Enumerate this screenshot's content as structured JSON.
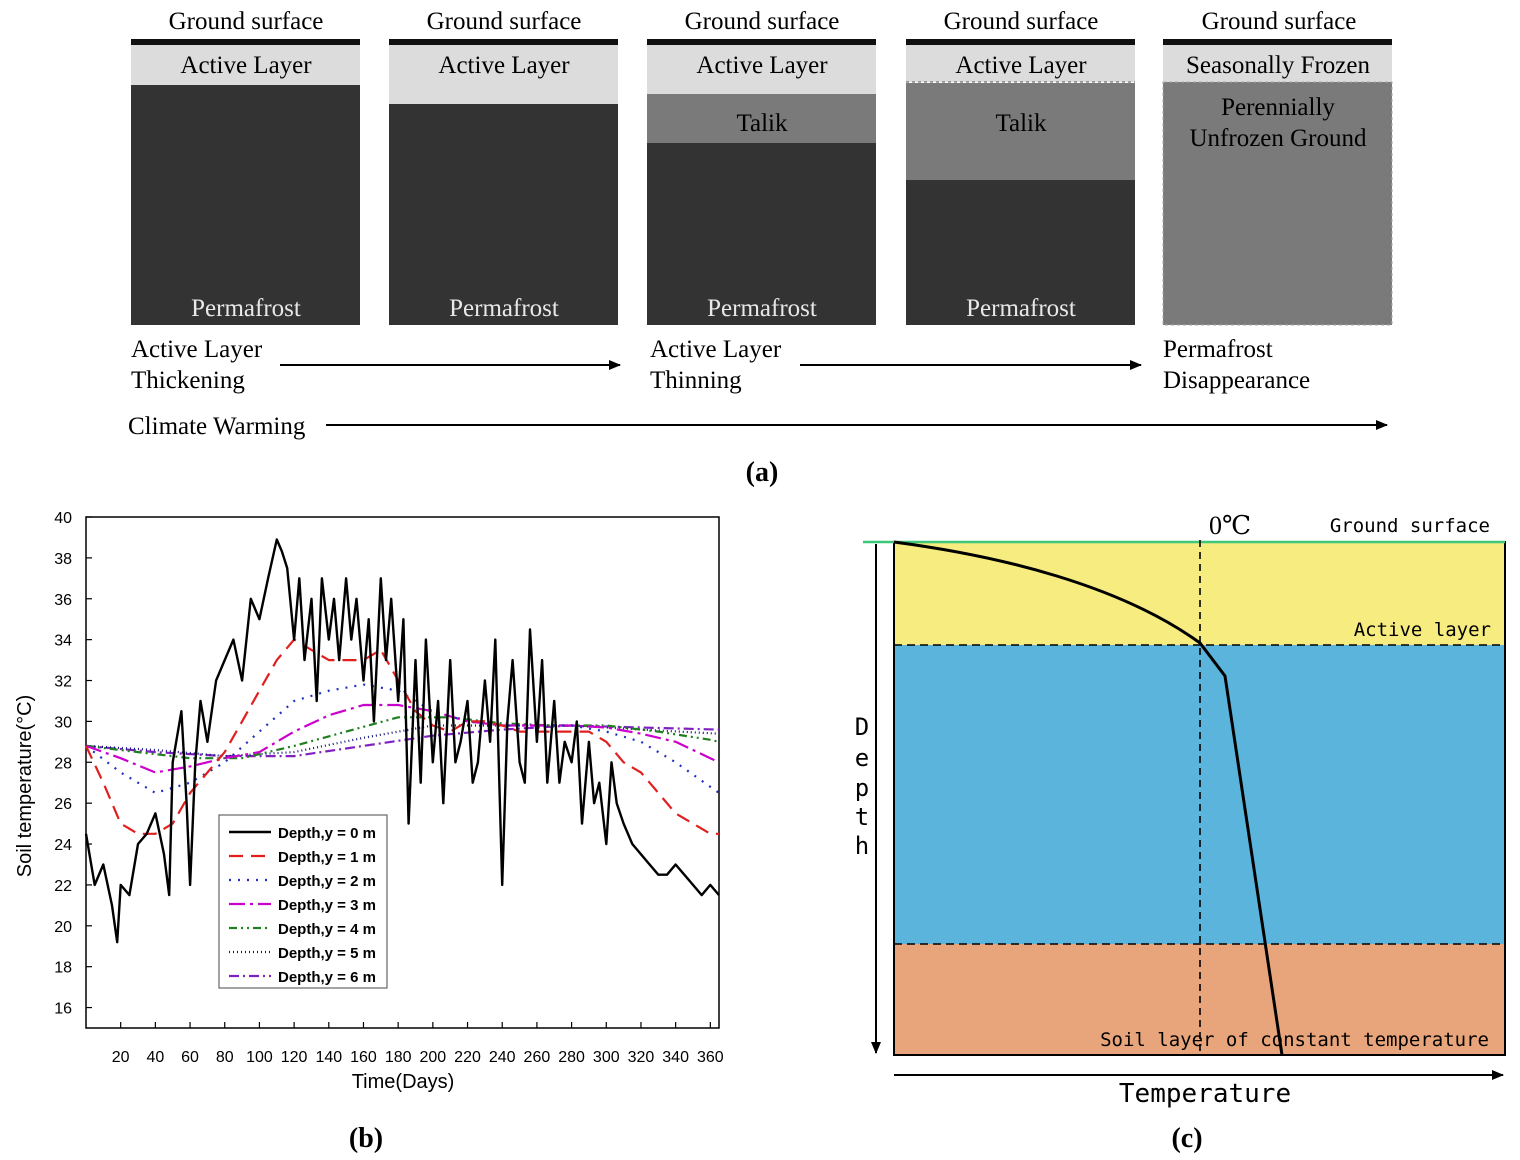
{
  "panel_a": {
    "label": "(a)",
    "columns": [
      {
        "surface": "Ground surface",
        "top_layer": "Active Layer",
        "middle_layer": "",
        "bottom_layer": "Permafrost"
      },
      {
        "surface": "Ground surface",
        "top_layer": "Active Layer",
        "middle_layer": "",
        "bottom_layer": "Permafrost"
      },
      {
        "surface": "Ground surface",
        "top_layer": "Active Layer",
        "middle_layer": "Talik",
        "bottom_layer": "Permafrost"
      },
      {
        "surface": "Ground surface",
        "top_layer": "Active Layer",
        "middle_layer": "Talik",
        "bottom_layer": "Permafrost"
      },
      {
        "surface": "Ground surface",
        "top_layer": "Seasonally Frozen",
        "middle_layer_line1": "Perennially",
        "middle_layer_line2": "Unfrozen Ground",
        "bottom_layer": ""
      }
    ],
    "stage1": {
      "line1": "Active Layer",
      "line2": "Thickening"
    },
    "stage2": {
      "line1": "Active Layer",
      "line2": "Thinning"
    },
    "stage3": {
      "line1": "Permafrost",
      "line2": "Disappearance"
    },
    "climate": "Climate Warming"
  },
  "panel_b": {
    "label": "(b)",
    "chart_data": {
      "type": "line",
      "title": "",
      "xlabel": "Time(Days)",
      "ylabel": "Soil temperature(°C)",
      "xlim": [
        0,
        365
      ],
      "ylim": [
        15,
        40
      ],
      "xticks": [
        "20",
        "40",
        "60",
        "80",
        "100",
        "120",
        "140",
        "160",
        "180",
        "200",
        "220",
        "240",
        "260",
        "280",
        "300",
        "320",
        "340",
        "360"
      ],
      "yticks": [
        "16",
        "18",
        "20",
        "22",
        "24",
        "26",
        "28",
        "30",
        "32",
        "34",
        "36",
        "38",
        "40"
      ],
      "legend_position": "lower-left",
      "series": [
        {
          "name": "Depth,y = 0 m",
          "color": "#000000",
          "dash": "",
          "width": 2.4,
          "x": [
            0,
            5,
            10,
            15,
            18,
            20,
            25,
            30,
            35,
            40,
            45,
            48,
            50,
            55,
            58,
            60,
            63,
            66,
            70,
            75,
            80,
            85,
            90,
            95,
            100,
            105,
            110,
            113,
            116,
            120,
            123,
            126,
            130,
            133,
            136,
            140,
            143,
            146,
            150,
            153,
            156,
            160,
            163,
            166,
            170,
            173,
            176,
            180,
            183,
            186,
            190,
            193,
            196,
            200,
            203,
            206,
            210,
            213,
            216,
            220,
            223,
            226,
            230,
            233,
            236,
            240,
            243,
            246,
            250,
            253,
            256,
            260,
            263,
            266,
            270,
            273,
            276,
            280,
            283,
            286,
            290,
            293,
            296,
            300,
            303,
            306,
            310,
            315,
            320,
            325,
            330,
            335,
            340,
            345,
            350,
            355,
            360,
            365
          ],
          "y": [
            24.5,
            22,
            23,
            21,
            19.2,
            22,
            21.5,
            24,
            24.5,
            25.5,
            23.5,
            21.5,
            28,
            30.5,
            26,
            22,
            28,
            31,
            29,
            32,
            33,
            34,
            32,
            36,
            35,
            37,
            38.9,
            38.3,
            37.5,
            34,
            37,
            33,
            36,
            31,
            37,
            34,
            36,
            33,
            37,
            34,
            36,
            32,
            35,
            30,
            37,
            33,
            36,
            31,
            35,
            25,
            33,
            27,
            34,
            28,
            31,
            26,
            33,
            28,
            29,
            31,
            27,
            28,
            32,
            29,
            34,
            22,
            30,
            33,
            28,
            27,
            34.5,
            29,
            33,
            27,
            31,
            27,
            29,
            28,
            30,
            25,
            29,
            26,
            27,
            24,
            28,
            26,
            25,
            24,
            23.5,
            23,
            22.5,
            22.5,
            23,
            22.5,
            22,
            21.5,
            22,
            21.5
          ]
        },
        {
          "name": "Depth,y = 1 m",
          "color": "#e02020",
          "dash": "14,8",
          "width": 2.2,
          "x": [
            0,
            10,
            20,
            30,
            40,
            50,
            60,
            70,
            80,
            90,
            100,
            110,
            120,
            130,
            140,
            150,
            160,
            170,
            180,
            190,
            200,
            210,
            220,
            230,
            240,
            250,
            260,
            270,
            280,
            290,
            300,
            310,
            320,
            330,
            340,
            350,
            360,
            365
          ],
          "y": [
            28.8,
            27,
            25,
            24.5,
            24.5,
            25,
            26.5,
            27.5,
            28.5,
            30,
            31.5,
            33,
            34,
            33.5,
            33,
            33,
            33,
            33.5,
            32,
            30.5,
            29.8,
            29.5,
            30,
            30,
            29.8,
            29.5,
            29.5,
            29.5,
            29.5,
            29.5,
            29,
            28,
            27.5,
            26.5,
            25.5,
            25,
            24.5,
            24.5
          ]
        },
        {
          "name": "Depth,y = 2 m",
          "color": "#2030c0",
          "dash": "2,7",
          "width": 2.2,
          "x": [
            0,
            20,
            40,
            60,
            80,
            100,
            120,
            140,
            160,
            180,
            200,
            220,
            240,
            260,
            280,
            300,
            320,
            340,
            360,
            365
          ],
          "y": [
            28.8,
            27.5,
            26.5,
            27,
            28,
            29.5,
            31,
            31.5,
            31.8,
            31.5,
            30.5,
            30,
            29.8,
            29.8,
            29.8,
            29.5,
            29,
            28,
            26.8,
            26.5
          ]
        },
        {
          "name": "Depth,y = 3 m",
          "color": "#cc00cc",
          "dash": "16,5,3,5",
          "width": 2.2,
          "x": [
            0,
            20,
            40,
            60,
            80,
            100,
            120,
            140,
            160,
            180,
            200,
            220,
            240,
            260,
            280,
            300,
            320,
            340,
            360,
            365
          ],
          "y": [
            28.8,
            28.2,
            27.5,
            27.8,
            28.2,
            28.5,
            29.5,
            30.3,
            30.8,
            30.8,
            30.5,
            30,
            29.8,
            29.8,
            29.8,
            29.7,
            29.4,
            29,
            28.2,
            28
          ]
        },
        {
          "name": "Depth,y = 4 m",
          "color": "#208020",
          "dash": "8,4,2,4,2,4",
          "width": 2.2,
          "x": [
            0,
            30,
            60,
            90,
            120,
            150,
            180,
            210,
            240,
            270,
            300,
            330,
            360,
            365
          ],
          "y": [
            28.8,
            28.5,
            28.2,
            28.2,
            28.8,
            29.5,
            30.2,
            30.2,
            29.9,
            29.8,
            29.8,
            29.5,
            29.1,
            29
          ]
        },
        {
          "name": "Depth,y = 5 m",
          "color": "#101080",
          "dash": "1,3",
          "width": 2.2,
          "x": [
            0,
            40,
            80,
            120,
            160,
            200,
            240,
            280,
            320,
            365
          ],
          "y": [
            28.8,
            28.6,
            28.3,
            28.5,
            29.2,
            29.8,
            29.8,
            29.8,
            29.6,
            29.4
          ]
        },
        {
          "name": "Depth,y = 6 m",
          "color": "#8020c0",
          "dash": "10,4,2,4",
          "width": 2.2,
          "x": [
            0,
            40,
            80,
            120,
            160,
            200,
            240,
            280,
            320,
            365
          ],
          "y": [
            28.8,
            28.5,
            28.3,
            28.3,
            28.8,
            29.3,
            29.6,
            29.8,
            29.7,
            29.6
          ]
        }
      ]
    }
  },
  "panel_c": {
    "label": "(c)",
    "zero_label": "0℃",
    "ground_surface": "Ground surface",
    "active_layer": "Active layer",
    "constant_layer": "Soil layer of  constant temperature",
    "depth_letters": [
      "D",
      "e",
      "p",
      "t",
      "h"
    ],
    "temperature": "Temperature",
    "colors": {
      "active": "#f7ec7f",
      "middle": "#5ab4dc",
      "bottom": "#e8a47a",
      "surface_line": "#3cc87a"
    }
  }
}
